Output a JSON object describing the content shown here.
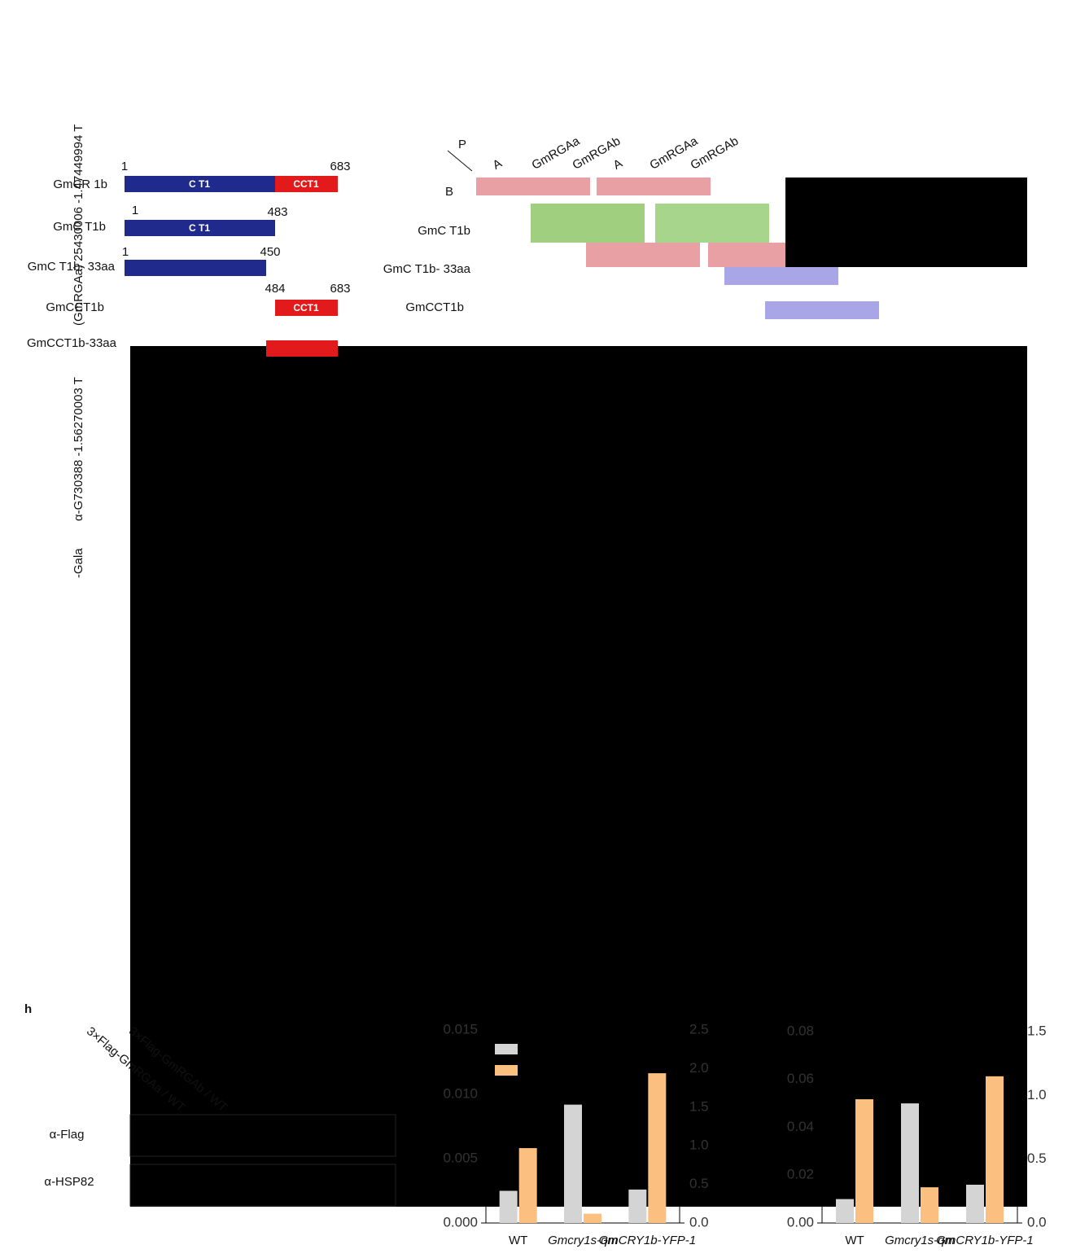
{
  "side_labels": [
    "α-G730388 -1.56270003 T",
    "(GmRGAa)  25430006 -1.47449994 T",
    "-Gala"
  ],
  "domains": {
    "rows": [
      {
        "label": "GmCR  1b",
        "start": 1,
        "end": 683,
        "blue": "C  T1",
        "red": "CCT1"
      },
      {
        "label": "GmC  T1b",
        "start": 1,
        "end": 483,
        "blue": "C  T1"
      },
      {
        "label": "GmC  T1b-  33aa",
        "start": 1,
        "end": 450
      },
      {
        "label": "GmCCT1b",
        "start": 484,
        "end": 683,
        "red": "CCT1"
      },
      {
        "label": "GmCCT1b-33aa"
      }
    ]
  },
  "y2h": {
    "corner": "P",
    "columns": [
      "A",
      "GmRGAa",
      "GmRGAb",
      "A",
      "GmRGAa",
      "GmRGAb"
    ],
    "first_row": "B",
    "rows": [
      "GmC  T1b",
      "GmC  T1b-  33aa",
      "GmCCT1b"
    ]
  },
  "panel_h": "h",
  "blot": {
    "lanes": [
      "3×Flag-GmRGAa / WT",
      "3×Flag-GmRGAb / WT"
    ],
    "rows": [
      "α-Flag",
      "α-HSP82"
    ]
  },
  "chart_data": [
    {
      "type": "bar",
      "categories": [
        "WT",
        "Gmcry1s-qm",
        "GmCRY1b-YFP-1"
      ],
      "series": [
        {
          "color": "#d4d4d4",
          "values": [
            0.0025,
            0.0092,
            0.0026
          ]
        },
        {
          "color": "#fbbf7f",
          "values": [
            0.97,
            0.12,
            1.94
          ],
          "axis": "y2"
        }
      ],
      "ylim": [
        0,
        0.015
      ],
      "yticks": [
        {
          "value": 0,
          "label": "0.000"
        },
        0.005,
        {
          "value": 0.01,
          "label": "0.010"
        },
        0.015
      ],
      "y2lim": [
        0,
        2.5
      ],
      "y2ticks": [
        {
          "value": 0,
          "label": "0.0"
        },
        0.5,
        {
          "value": 1,
          "label": "1.0"
        },
        1.5,
        {
          "value": 2,
          "label": "2.0"
        },
        2.5
      ]
    },
    {
      "type": "bar",
      "categories": [
        "WT",
        "Gmcry1s-qm",
        "GmCRY1b-YFP-1"
      ],
      "series": [
        {
          "color": "#d4d4d4",
          "values": [
            0.01,
            0.05,
            0.016
          ]
        },
        {
          "color": "#fbbf7f",
          "values": [
            0.97,
            0.28,
            1.15
          ],
          "axis": "y2"
        }
      ],
      "ylim": [
        0,
        0.08
      ],
      "yticks": [
        {
          "value": 0,
          "label": "0.00"
        },
        0.02,
        0.04,
        0.06,
        0.08
      ],
      "y2lim": [
        0,
        1.5
      ],
      "y2ticks": [
        {
          "value": 0,
          "label": "0.0"
        },
        0.5,
        {
          "value": 1,
          "label": "1.0"
        },
        1.5
      ]
    }
  ]
}
